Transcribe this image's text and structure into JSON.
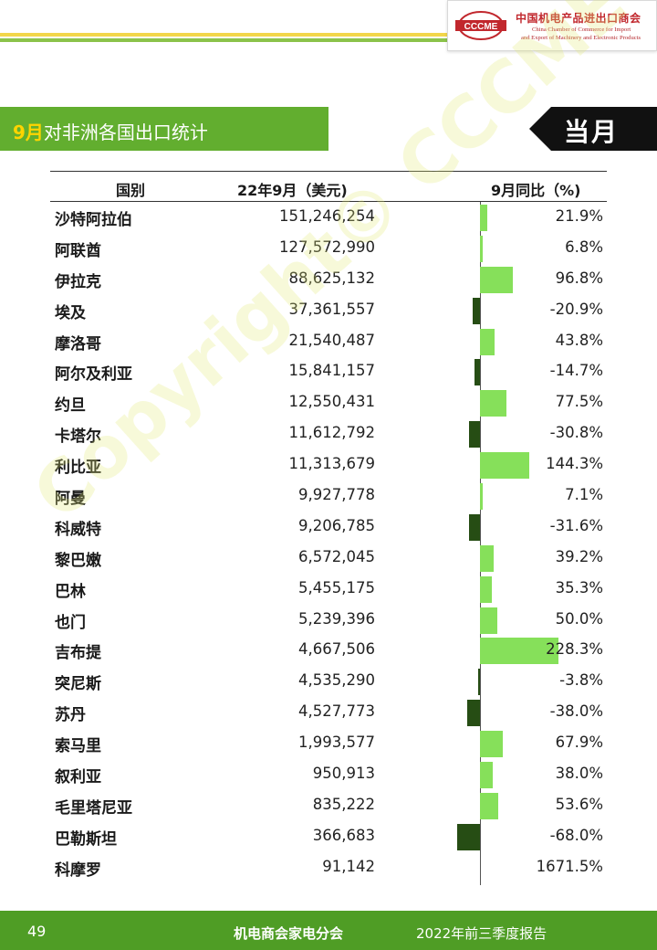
{
  "header": {
    "logo_mark_text": "CCCME",
    "org_cn": "中国机电产品进出口商会",
    "org_en_line1": "China Chamber of Commerce for Import",
    "org_en_line2": "and Export of Machinery and Electronic Products",
    "accent_yellow": "#f2d64a",
    "accent_green": "#8bc34a"
  },
  "title": {
    "highlight": "9月",
    "text": "对非洲各国出口统计",
    "tag": "当月",
    "bar_color": "#62ae2f"
  },
  "table": {
    "headers": [
      "国别",
      "22年9月（美元)",
      "9月同比（%)"
    ],
    "rows": [
      {
        "country": "沙特阿拉伯",
        "value": "151,246,254",
        "yoy": "21.9%",
        "yoy_num": 21.9
      },
      {
        "country": "阿联酋",
        "value": "127,572,990",
        "yoy": "6.8%",
        "yoy_num": 6.8
      },
      {
        "country": "伊拉克",
        "value": "88,625,132",
        "yoy": "96.8%",
        "yoy_num": 96.8
      },
      {
        "country": "埃及",
        "value": "37,361,557",
        "yoy": "-20.9%",
        "yoy_num": -20.9
      },
      {
        "country": "摩洛哥",
        "value": "21,540,487",
        "yoy": "43.8%",
        "yoy_num": 43.8
      },
      {
        "country": "阿尔及利亚",
        "value": "15,841,157",
        "yoy": "-14.7%",
        "yoy_num": -14.7
      },
      {
        "country": "约旦",
        "value": "12,550,431",
        "yoy": "77.5%",
        "yoy_num": 77.5
      },
      {
        "country": "卡塔尔",
        "value": "11,612,792",
        "yoy": "-30.8%",
        "yoy_num": -30.8
      },
      {
        "country": "利比亚",
        "value": "11,313,679",
        "yoy": "144.3%",
        "yoy_num": 144.3
      },
      {
        "country": "阿曼",
        "value": "9,927,778",
        "yoy": "7.1%",
        "yoy_num": 7.1
      },
      {
        "country": "科威特",
        "value": "9,206,785",
        "yoy": "-31.6%",
        "yoy_num": -31.6
      },
      {
        "country": "黎巴嫩",
        "value": "6,572,045",
        "yoy": "39.2%",
        "yoy_num": 39.2
      },
      {
        "country": "巴林",
        "value": "5,455,175",
        "yoy": "35.3%",
        "yoy_num": 35.3
      },
      {
        "country": "也门",
        "value": "5,239,396",
        "yoy": "50.0%",
        "yoy_num": 50.0
      },
      {
        "country": "吉布提",
        "value": "4,667,506",
        "yoy": "228.3%",
        "yoy_num": 228.3
      },
      {
        "country": "突尼斯",
        "value": "4,535,290",
        "yoy": "-3.8%",
        "yoy_num": -3.8
      },
      {
        "country": "苏丹",
        "value": "4,527,773",
        "yoy": "-38.0%",
        "yoy_num": -38.0
      },
      {
        "country": "索马里",
        "value": "1,993,577",
        "yoy": "67.9%",
        "yoy_num": 67.9
      },
      {
        "country": "叙利亚",
        "value": "950,913",
        "yoy": "38.0%",
        "yoy_num": 38.0
      },
      {
        "country": "毛里塔尼亚",
        "value": "835,222",
        "yoy": "53.6%",
        "yoy_num": 53.6
      },
      {
        "country": "巴勒斯坦",
        "value": "366,683",
        "yoy": "-68.0%",
        "yoy_num": -68.0
      },
      {
        "country": "科摩罗",
        "value": "91,142",
        "yoy": "1671.5%",
        "yoy_num": null
      }
    ],
    "positive_bar_color": "#86e05a",
    "negative_bar_color": "#264d14"
  },
  "watermark": "Copyright© CCCME",
  "footer": {
    "page_number": "49",
    "org": "机电商会家电分会",
    "report": "2022年前三季度报告",
    "color": "#4f9d25"
  }
}
